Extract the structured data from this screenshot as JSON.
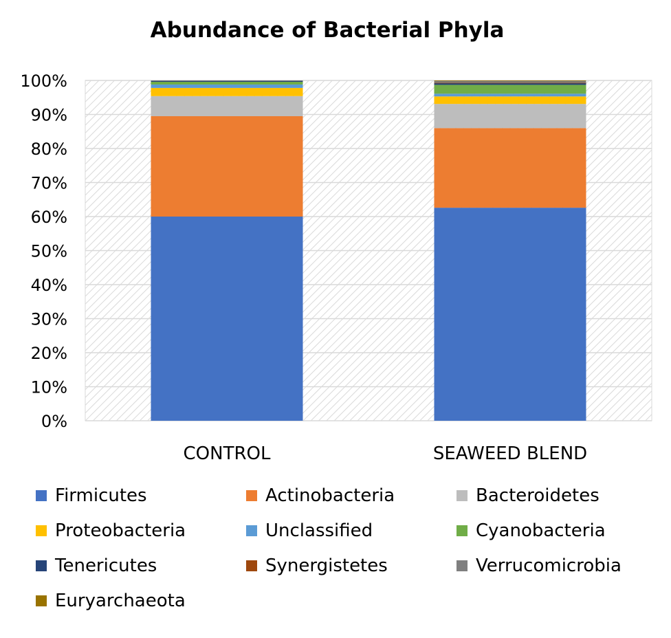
{
  "chart_data": {
    "type": "bar",
    "stacked": true,
    "title": "Abundance of Bacterial Phyla",
    "xlabel": "",
    "ylabel": "",
    "ylim": [
      0,
      100
    ],
    "yticks": [
      "0%",
      "10%",
      "20%",
      "30%",
      "40%",
      "50%",
      "60%",
      "70%",
      "80%",
      "90%",
      "100%"
    ],
    "categories": [
      "CONTROL",
      "SEAWEED BLEND"
    ],
    "legend_position": "bottom",
    "grid": true,
    "series": [
      {
        "name": "Firmicutes",
        "color": "#4472C4",
        "values": [
          60.0,
          62.6
        ]
      },
      {
        "name": "Actinobacteria",
        "color": "#ED7D31",
        "values": [
          29.5,
          23.4
        ]
      },
      {
        "name": "Bacteroidetes",
        "color": "#BDBDBD",
        "values": [
          5.9,
          7.1
        ]
      },
      {
        "name": "Proteobacteria",
        "color": "#FFC000",
        "values": [
          2.4,
          2.2
        ]
      },
      {
        "name": "Unclassified",
        "color": "#5B9BD5",
        "values": [
          1.0,
          0.8
        ]
      },
      {
        "name": "Cyanobacteria",
        "color": "#70AD47",
        "values": [
          0.8,
          2.6
        ]
      },
      {
        "name": "Tenericutes",
        "color": "#264478",
        "values": [
          0.3,
          0.5
        ]
      },
      {
        "name": "Synergistetes",
        "color": "#9E480E",
        "values": [
          0.0,
          0.1
        ]
      },
      {
        "name": "Verrucomicrobia",
        "color": "#7F7F7F",
        "values": [
          0.1,
          0.6
        ]
      },
      {
        "name": "Euryarchaeota",
        "color": "#997300",
        "values": [
          0.0,
          0.1
        ]
      }
    ]
  }
}
